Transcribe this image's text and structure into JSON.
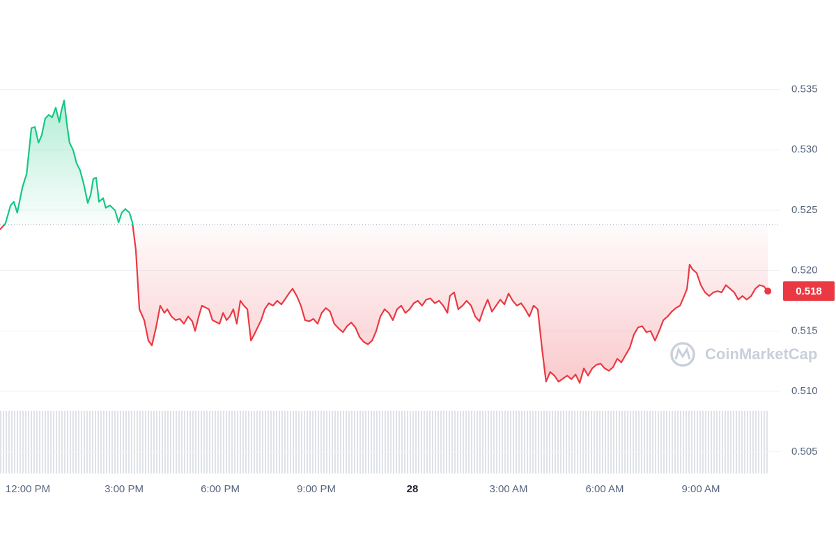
{
  "chart_data": {
    "type": "line",
    "x": [
      11.13,
      11.3,
      11.46,
      11.56,
      11.67,
      11.83,
      11.96,
      12.11,
      12.22,
      12.33,
      12.43,
      12.54,
      12.65,
      12.76,
      12.87,
      12.98,
      13.04,
      13.13,
      13.22,
      13.3,
      13.41,
      13.52,
      13.63,
      13.74,
      13.87,
      13.96,
      14.04,
      14.13,
      14.22,
      14.35,
      14.43,
      14.56,
      14.72,
      14.83,
      14.93,
      15.04,
      15.17,
      15.26,
      15.37,
      15.48,
      15.63,
      15.76,
      15.87,
      16.0,
      16.13,
      16.26,
      16.35,
      16.48,
      16.61,
      16.74,
      16.87,
      17.0,
      17.13,
      17.22,
      17.33,
      17.43,
      17.65,
      17.76,
      17.98,
      18.09,
      18.2,
      18.3,
      18.41,
      18.52,
      18.63,
      18.74,
      18.85,
      18.96,
      19.06,
      19.17,
      19.28,
      19.39,
      19.52,
      19.65,
      19.78,
      19.91,
      20.04,
      20.17,
      20.26,
      20.39,
      20.52,
      20.65,
      20.78,
      20.91,
      21.04,
      21.17,
      21.3,
      21.43,
      21.56,
      21.7,
      21.83,
      21.96,
      22.09,
      22.22,
      22.35,
      22.48,
      22.61,
      22.74,
      22.87,
      23.0,
      23.13,
      23.26,
      23.39,
      23.52,
      23.65,
      23.78,
      23.91,
      24.04,
      24.17,
      24.3,
      24.43,
      24.56,
      24.7,
      24.83,
      24.96,
      25.09,
      25.17,
      25.3,
      25.43,
      25.56,
      25.69,
      25.83,
      25.96,
      26.09,
      26.22,
      26.35,
      26.48,
      26.61,
      26.74,
      26.87,
      27.0,
      27.13,
      27.26,
      27.39,
      27.52,
      27.65,
      27.78,
      27.91,
      28.04,
      28.17,
      28.3,
      28.43,
      28.56,
      28.83,
      28.96,
      29.09,
      29.22,
      29.35,
      29.48,
      29.61,
      29.74,
      29.87,
      30.0,
      30.13,
      30.26,
      30.39,
      30.52,
      30.65,
      30.78,
      30.91,
      31.04,
      31.17,
      31.3,
      31.43,
      31.57,
      31.7,
      31.83,
      31.96,
      32.09,
      32.22,
      32.35,
      32.48,
      32.57,
      32.65,
      32.74,
      32.87,
      33.0,
      33.13,
      33.26,
      33.39,
      33.52,
      33.65,
      33.78,
      33.91,
      34.04,
      34.17,
      34.3,
      34.43,
      34.57,
      34.7,
      34.83,
      34.96,
      35.09
    ],
    "values": [
      0.5234,
      0.5239,
      0.5254,
      0.5257,
      0.5248,
      0.5269,
      0.528,
      0.5318,
      0.5319,
      0.5306,
      0.5312,
      0.5326,
      0.5329,
      0.5327,
      0.5335,
      0.5323,
      0.5332,
      0.5341,
      0.5321,
      0.5306,
      0.53,
      0.5289,
      0.5283,
      0.5272,
      0.5256,
      0.5263,
      0.5276,
      0.5277,
      0.5257,
      0.526,
      0.5252,
      0.5254,
      0.525,
      0.524,
      0.5248,
      0.5251,
      0.5248,
      0.524,
      0.5217,
      0.5168,
      0.5159,
      0.5142,
      0.5138,
      0.5153,
      0.5171,
      0.5165,
      0.5168,
      0.5162,
      0.5159,
      0.516,
      0.5156,
      0.5162,
      0.5158,
      0.515,
      0.5162,
      0.5171,
      0.5168,
      0.5159,
      0.5156,
      0.5165,
      0.5159,
      0.5162,
      0.5168,
      0.5156,
      0.5175,
      0.5171,
      0.5168,
      0.5142,
      0.5147,
      0.5153,
      0.5159,
      0.5168,
      0.5173,
      0.5171,
      0.5175,
      0.5172,
      0.5177,
      0.5182,
      0.5185,
      0.5179,
      0.5171,
      0.5159,
      0.5158,
      0.516,
      0.5156,
      0.5165,
      0.5169,
      0.5166,
      0.5156,
      0.5152,
      0.5149,
      0.5154,
      0.5157,
      0.5153,
      0.5145,
      0.5141,
      0.5139,
      0.5142,
      0.515,
      0.5162,
      0.5168,
      0.5165,
      0.5159,
      0.5168,
      0.5171,
      0.5165,
      0.5168,
      0.5173,
      0.5175,
      0.5171,
      0.5176,
      0.5177,
      0.5173,
      0.5175,
      0.5171,
      0.5165,
      0.5179,
      0.5182,
      0.5168,
      0.5171,
      0.5175,
      0.5171,
      0.5162,
      0.5158,
      0.5168,
      0.5176,
      0.5166,
      0.5171,
      0.5176,
      0.5172,
      0.5181,
      0.5175,
      0.5171,
      0.5173,
      0.5168,
      0.5162,
      0.5171,
      0.5168,
      0.5136,
      0.5108,
      0.5116,
      0.5113,
      0.5108,
      0.5113,
      0.511,
      0.5114,
      0.5107,
      0.5119,
      0.5113,
      0.5119,
      0.5122,
      0.5123,
      0.5119,
      0.5117,
      0.512,
      0.5127,
      0.5124,
      0.513,
      0.5136,
      0.5147,
      0.5153,
      0.5154,
      0.5149,
      0.515,
      0.5142,
      0.515,
      0.5159,
      0.5162,
      0.5166,
      0.5169,
      0.5171,
      0.5179,
      0.5185,
      0.5205,
      0.5201,
      0.5198,
      0.5188,
      0.5182,
      0.5179,
      0.5182,
      0.5183,
      0.5182,
      0.5188,
      0.5185,
      0.5182,
      0.5176,
      0.5179,
      0.5176,
      0.5179,
      0.5185,
      0.5188,
      0.5187,
      0.5183
    ],
    "baseline": 0.5238,
    "colors": {
      "up": "#16c784",
      "down": "#ea3943"
    },
    "xlim": [
      11.13,
      35.13
    ],
    "xticks": [
      {
        "value": 12,
        "label": "12:00 PM"
      },
      {
        "value": 15,
        "label": "3:00 PM"
      },
      {
        "value": 18,
        "label": "6:00 PM"
      },
      {
        "value": 21,
        "label": "9:00 PM"
      },
      {
        "value": 24,
        "label": "28"
      },
      {
        "value": 27,
        "label": "3:00 AM"
      },
      {
        "value": 30,
        "label": "6:00 AM"
      },
      {
        "value": 33,
        "label": "9:00 AM"
      }
    ],
    "ylim": [
      0.5032,
      0.5378
    ],
    "yticks": [
      0.505,
      {
        "value": 0.51,
        "label": "0.510"
      },
      0.515,
      {
        "value": 0.52,
        "label": "0.520"
      },
      0.525,
      {
        "value": 0.53,
        "label": "0.530"
      },
      0.535
    ],
    "grid": true,
    "price_tag": {
      "value": 0.5183,
      "label": "0.518"
    },
    "watermark": "CoinMarketCap"
  }
}
